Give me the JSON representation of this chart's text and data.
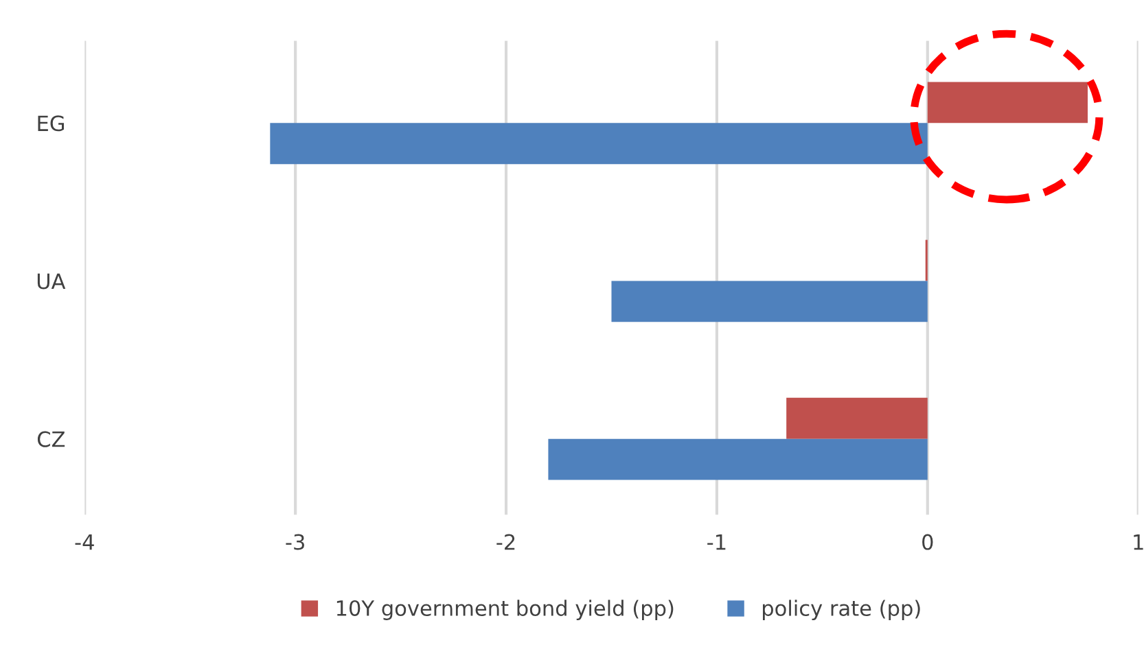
{
  "chart_data": {
    "type": "bar",
    "orientation": "horizontal",
    "categories": [
      "EG",
      "UA",
      "CZ"
    ],
    "series": [
      {
        "name": "10Y government bond yield (pp)",
        "color": "#c0504d",
        "values": [
          0.76,
          -0.01,
          -0.67
        ]
      },
      {
        "name": "policy rate (pp)",
        "color": "#4f81bd",
        "values": [
          -3.12,
          -1.5,
          -1.8
        ]
      }
    ],
    "xlim": [
      -4,
      1
    ],
    "xticks": [
      -4,
      -3,
      -2,
      -1,
      0,
      1
    ],
    "grid": "x",
    "legend": "bottom"
  }
}
